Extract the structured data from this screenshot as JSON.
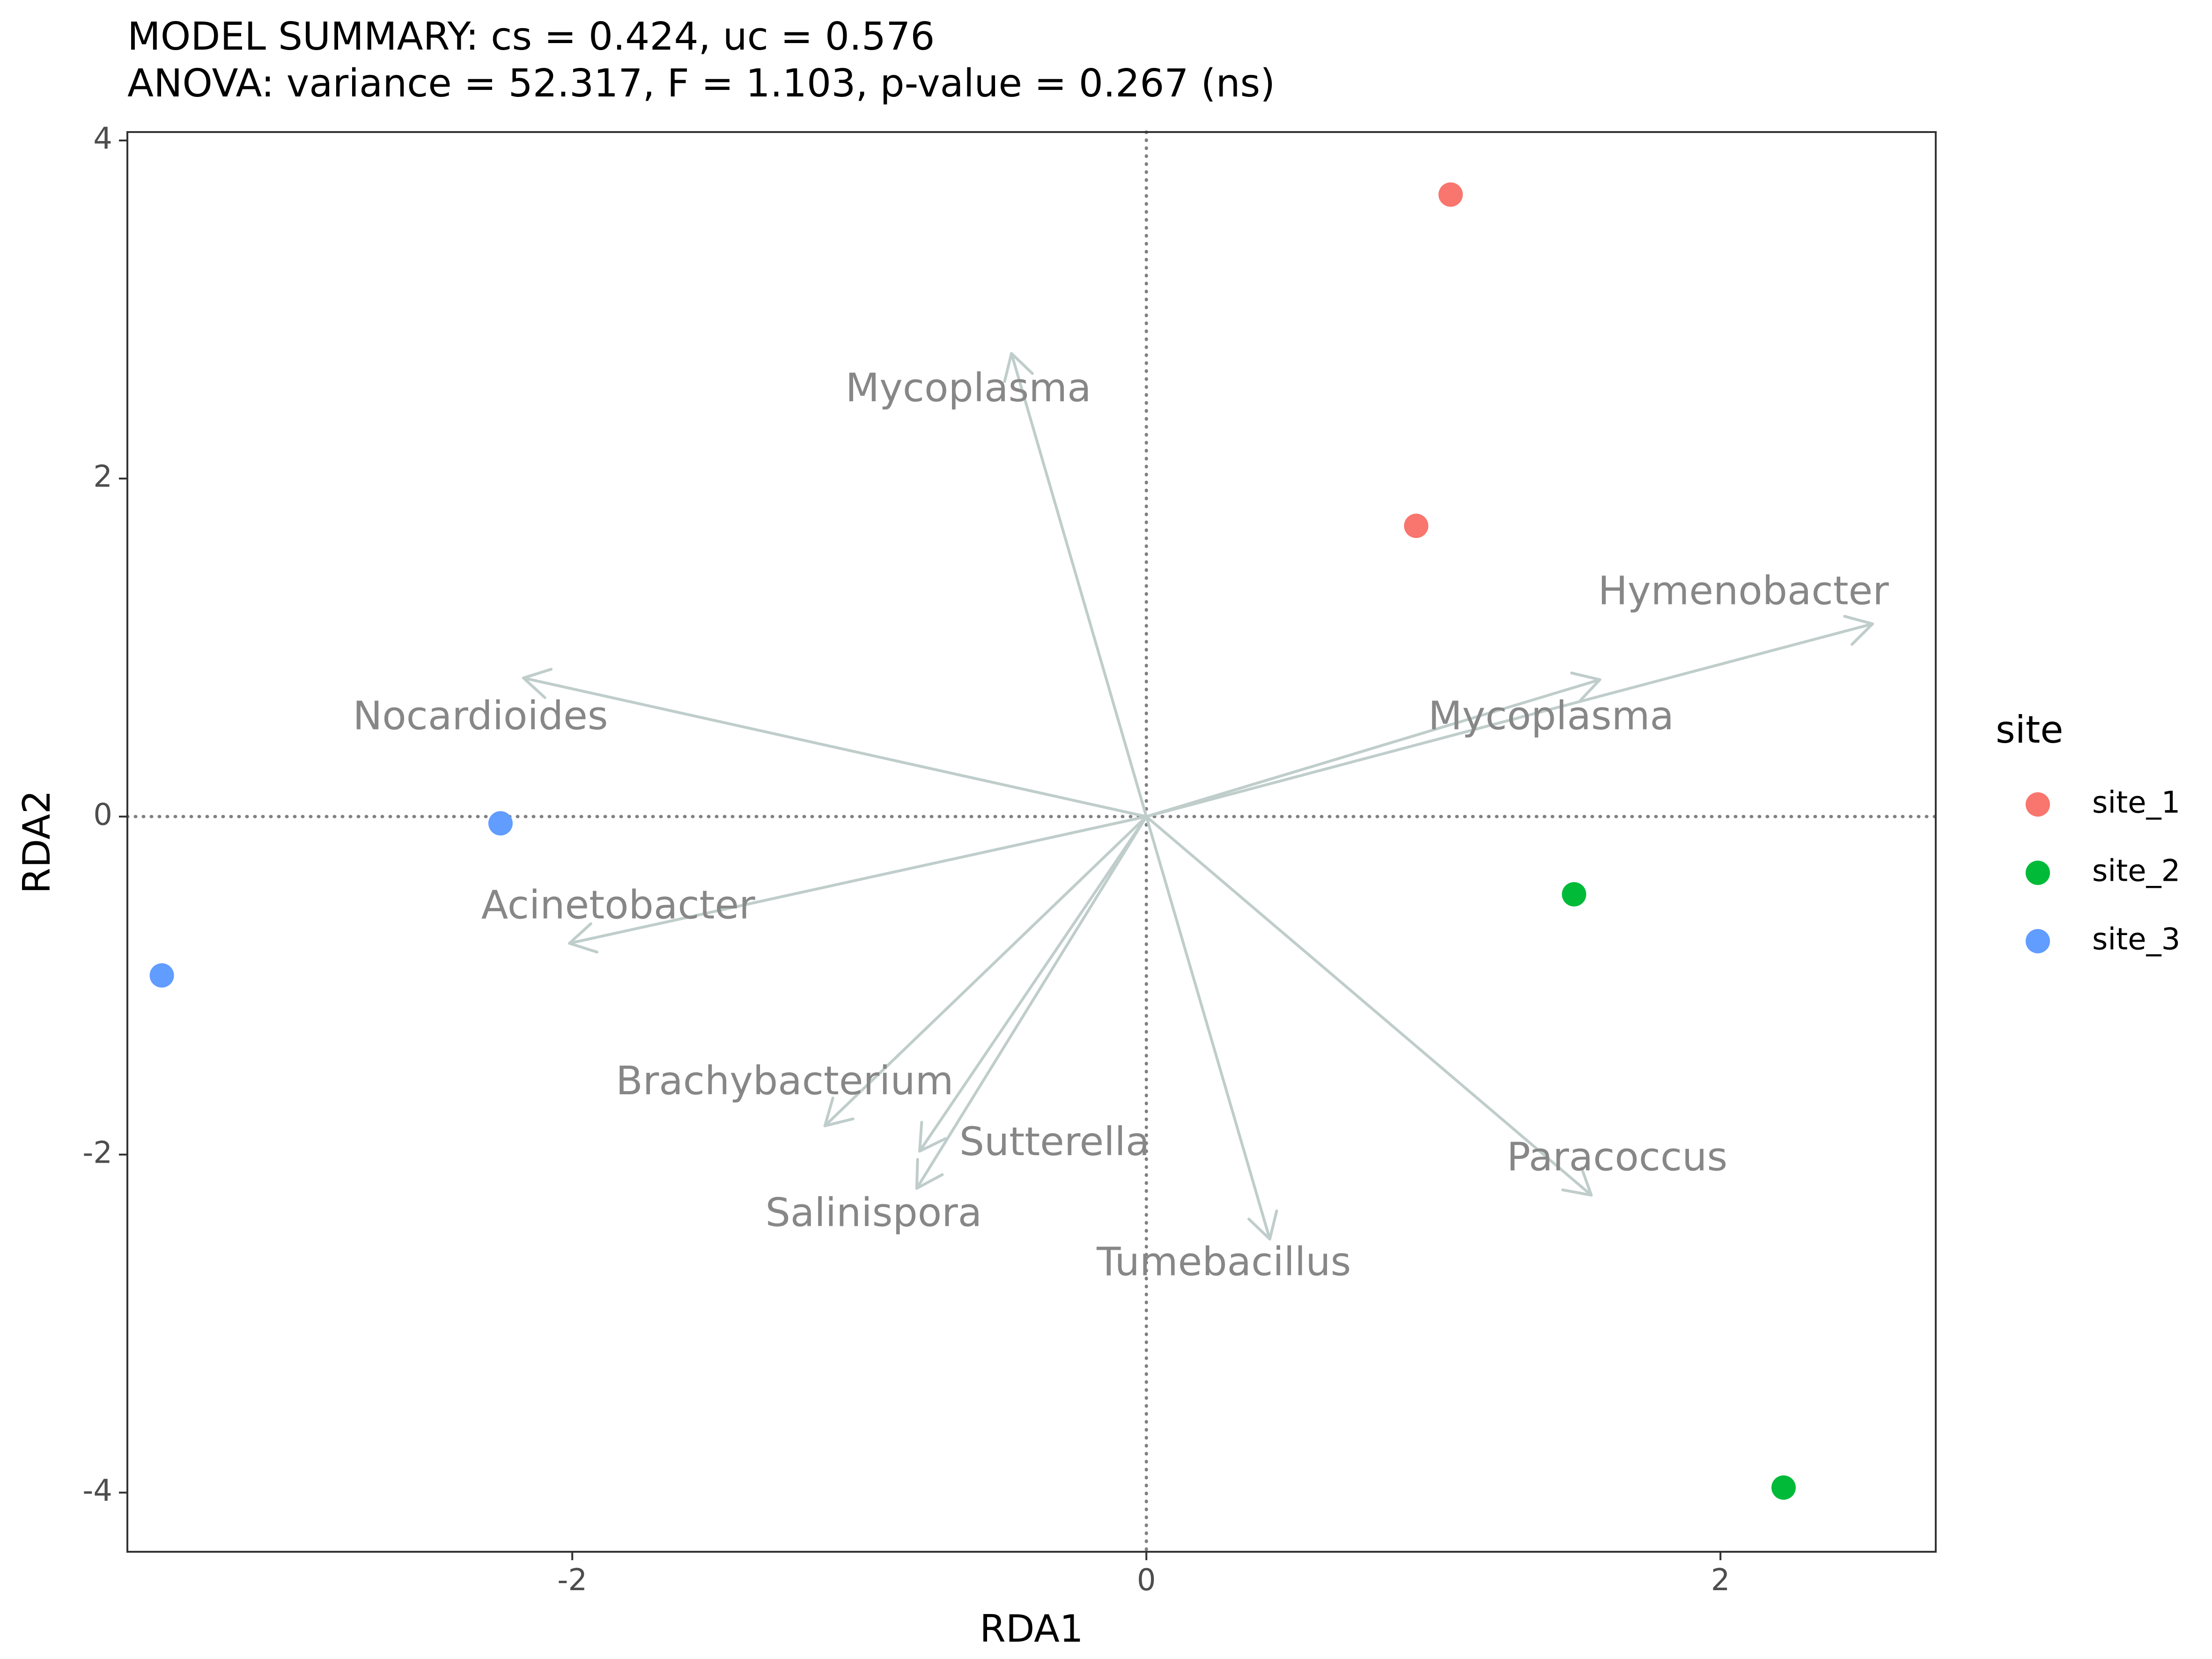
{
  "chart_data": {
    "type": "scatter",
    "title": "MODEL SUMMARY: cs = 0.424, uc = 0.576",
    "subtitle": "ANOVA: variance = 52.317, F = 1.103, p-value = 0.267 (ns)",
    "xlabel": "RDA1",
    "ylabel": "RDA2",
    "xlim": [
      -3.55,
      2.75
    ],
    "ylim": [
      -4.35,
      4.05
    ],
    "x_ticks": [
      {
        "value": -2,
        "label": "-2"
      },
      {
        "value": 0,
        "label": "0"
      },
      {
        "value": 2,
        "label": "2"
      }
    ],
    "y_ticks": [
      {
        "value": -4,
        "label": "-4"
      },
      {
        "value": -2,
        "label": "-2"
      },
      {
        "value": 0,
        "label": "0"
      },
      {
        "value": 2,
        "label": "2"
      },
      {
        "value": 4,
        "label": "4"
      }
    ],
    "grid": false,
    "reference_lines": {
      "x": 0,
      "y": 0,
      "style": "dotted",
      "color": "#808080"
    },
    "legend": {
      "title": "site",
      "position": "right",
      "entries": [
        {
          "label": "site_1",
          "color": "#F8766D"
        },
        {
          "label": "site_2",
          "color": "#00BA38"
        },
        {
          "label": "site_3",
          "color": "#619CFF"
        }
      ]
    },
    "points": [
      {
        "site": "site_1",
        "x": 1.06,
        "y": 3.68
      },
      {
        "site": "site_1",
        "x": 0.94,
        "y": 1.72
      },
      {
        "site": "site_2",
        "x": 1.49,
        "y": -0.46
      },
      {
        "site": "site_2",
        "x": 2.22,
        "y": -3.97
      },
      {
        "site": "site_3",
        "x": -2.25,
        "y": -0.04
      },
      {
        "site": "site_3",
        "x": -3.43,
        "y": -0.94
      }
    ],
    "arrow_color": "#BFCDCB",
    "label_color": "#878787",
    "arrows": [
      {
        "label": "Mycoplasma",
        "x": -0.47,
        "y": 2.74,
        "label_x": -0.62,
        "label_y": 2.52
      },
      {
        "label": "Hymenobacter",
        "x": 2.53,
        "y": 1.14,
        "label_x": 2.08,
        "label_y": 1.32
      },
      {
        "label": "Mycoplasma",
        "x": 1.58,
        "y": 0.81,
        "label_x": 1.41,
        "label_y": 0.58
      },
      {
        "label": "Nocardioides",
        "x": -2.17,
        "y": 0.82,
        "label_x": -2.32,
        "label_y": 0.58
      },
      {
        "label": "Acinetobacter",
        "x": -2.01,
        "y": -0.75,
        "label_x": -1.84,
        "label_y": -0.54
      },
      {
        "label": "Brachybacterium",
        "x": -1.12,
        "y": -1.83,
        "label_x": -1.26,
        "label_y": -1.58
      },
      {
        "label": "Sutterella",
        "x": -0.79,
        "y": -1.98,
        "label_x": -0.32,
        "label_y": -1.94
      },
      {
        "label": "Salinispora",
        "x": -0.8,
        "y": -2.2,
        "label_x": -0.95,
        "label_y": -2.36
      },
      {
        "label": "Tumebacillus",
        "x": 0.43,
        "y": -2.5,
        "label_x": 0.27,
        "label_y": -2.65
      },
      {
        "label": "Paracoccus",
        "x": 1.55,
        "y": -2.24,
        "label_x": 1.64,
        "label_y": -2.03
      }
    ]
  }
}
